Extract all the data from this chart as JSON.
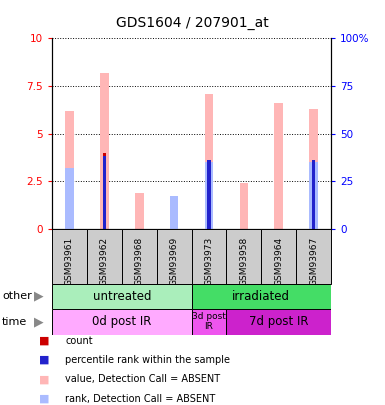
{
  "title": "GDS1604 / 207901_at",
  "samples": [
    "GSM93961",
    "GSM93962",
    "GSM93968",
    "GSM93969",
    "GSM93973",
    "GSM93958",
    "GSM93964",
    "GSM93967"
  ],
  "value_absent": [
    6.2,
    8.2,
    1.9,
    1.6,
    7.1,
    2.4,
    6.6,
    6.3
  ],
  "rank_absent": [
    3.2,
    0.0,
    0.0,
    1.7,
    3.5,
    0.0,
    0.0,
    3.5
  ],
  "count": [
    0.0,
    4.0,
    0.0,
    0.0,
    0.0,
    0.0,
    0.0,
    3.5
  ],
  "percentile": [
    0.0,
    3.8,
    0.0,
    0.0,
    3.6,
    0.0,
    0.0,
    3.6
  ],
  "ylim": [
    0,
    10
  ],
  "yticks": [
    0,
    2.5,
    5.0,
    7.5,
    10
  ],
  "ytick_labels": [
    "0",
    "2.5",
    "5",
    "7.5",
    "10"
  ],
  "y2ticks": [
    0,
    25,
    50,
    75,
    100
  ],
  "y2tick_labels": [
    "0",
    "25",
    "50",
    "75",
    "100%"
  ],
  "color_value_absent": "#FFB6B6",
  "color_rank_absent": "#AABBFF",
  "color_count": "#CC0000",
  "color_percentile": "#2222CC",
  "other_groups": [
    {
      "label": "untreated",
      "start": 0,
      "end": 4,
      "color": "#AAEEBB"
    },
    {
      "label": "irradiated",
      "start": 4,
      "end": 8,
      "color": "#44DD66"
    }
  ],
  "time_groups": [
    {
      "label": "0d post IR",
      "start": 0,
      "end": 4,
      "color": "#FFAAFF"
    },
    {
      "label": "3d post\nIR",
      "start": 4,
      "end": 5,
      "color": "#EE55EE"
    },
    {
      "label": "7d post IR",
      "start": 5,
      "end": 8,
      "color": "#CC22CC"
    }
  ],
  "legend_items": [
    {
      "label": "count",
      "color": "#CC0000"
    },
    {
      "label": "percentile rank within the sample",
      "color": "#2222CC"
    },
    {
      "label": "value, Detection Call = ABSENT",
      "color": "#FFB6B6"
    },
    {
      "label": "rank, Detection Call = ABSENT",
      "color": "#AABBFF"
    }
  ]
}
